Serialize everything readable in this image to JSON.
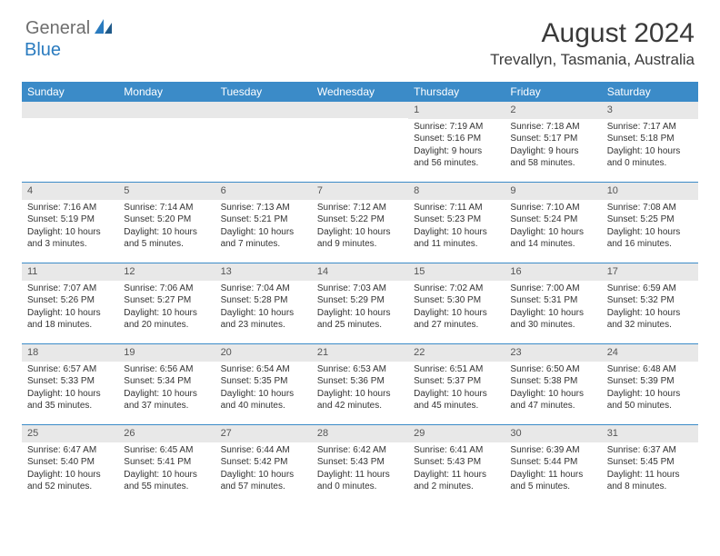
{
  "logo": {
    "part1": "General",
    "part2": "Blue"
  },
  "title": "August 2024",
  "location": "Trevallyn, Tasmania, Australia",
  "colors": {
    "header_bg": "#3b8bc8",
    "header_text": "#ffffff",
    "daynum_bg": "#e8e8e8",
    "border": "#3b8bc8",
    "logo_gray": "#6e6e6e",
    "logo_blue": "#2a7bbf",
    "text": "#333333"
  },
  "day_names": [
    "Sunday",
    "Monday",
    "Tuesday",
    "Wednesday",
    "Thursday",
    "Friday",
    "Saturday"
  ],
  "weeks": [
    [
      {
        "n": "",
        "sr": "",
        "ss": "",
        "dl": ""
      },
      {
        "n": "",
        "sr": "",
        "ss": "",
        "dl": ""
      },
      {
        "n": "",
        "sr": "",
        "ss": "",
        "dl": ""
      },
      {
        "n": "",
        "sr": "",
        "ss": "",
        "dl": ""
      },
      {
        "n": "1",
        "sr": "Sunrise: 7:19 AM",
        "ss": "Sunset: 5:16 PM",
        "dl": "Daylight: 9 hours and 56 minutes."
      },
      {
        "n": "2",
        "sr": "Sunrise: 7:18 AM",
        "ss": "Sunset: 5:17 PM",
        "dl": "Daylight: 9 hours and 58 minutes."
      },
      {
        "n": "3",
        "sr": "Sunrise: 7:17 AM",
        "ss": "Sunset: 5:18 PM",
        "dl": "Daylight: 10 hours and 0 minutes."
      }
    ],
    [
      {
        "n": "4",
        "sr": "Sunrise: 7:16 AM",
        "ss": "Sunset: 5:19 PM",
        "dl": "Daylight: 10 hours and 3 minutes."
      },
      {
        "n": "5",
        "sr": "Sunrise: 7:14 AM",
        "ss": "Sunset: 5:20 PM",
        "dl": "Daylight: 10 hours and 5 minutes."
      },
      {
        "n": "6",
        "sr": "Sunrise: 7:13 AM",
        "ss": "Sunset: 5:21 PM",
        "dl": "Daylight: 10 hours and 7 minutes."
      },
      {
        "n": "7",
        "sr": "Sunrise: 7:12 AM",
        "ss": "Sunset: 5:22 PM",
        "dl": "Daylight: 10 hours and 9 minutes."
      },
      {
        "n": "8",
        "sr": "Sunrise: 7:11 AM",
        "ss": "Sunset: 5:23 PM",
        "dl": "Daylight: 10 hours and 11 minutes."
      },
      {
        "n": "9",
        "sr": "Sunrise: 7:10 AM",
        "ss": "Sunset: 5:24 PM",
        "dl": "Daylight: 10 hours and 14 minutes."
      },
      {
        "n": "10",
        "sr": "Sunrise: 7:08 AM",
        "ss": "Sunset: 5:25 PM",
        "dl": "Daylight: 10 hours and 16 minutes."
      }
    ],
    [
      {
        "n": "11",
        "sr": "Sunrise: 7:07 AM",
        "ss": "Sunset: 5:26 PM",
        "dl": "Daylight: 10 hours and 18 minutes."
      },
      {
        "n": "12",
        "sr": "Sunrise: 7:06 AM",
        "ss": "Sunset: 5:27 PM",
        "dl": "Daylight: 10 hours and 20 minutes."
      },
      {
        "n": "13",
        "sr": "Sunrise: 7:04 AM",
        "ss": "Sunset: 5:28 PM",
        "dl": "Daylight: 10 hours and 23 minutes."
      },
      {
        "n": "14",
        "sr": "Sunrise: 7:03 AM",
        "ss": "Sunset: 5:29 PM",
        "dl": "Daylight: 10 hours and 25 minutes."
      },
      {
        "n": "15",
        "sr": "Sunrise: 7:02 AM",
        "ss": "Sunset: 5:30 PM",
        "dl": "Daylight: 10 hours and 27 minutes."
      },
      {
        "n": "16",
        "sr": "Sunrise: 7:00 AM",
        "ss": "Sunset: 5:31 PM",
        "dl": "Daylight: 10 hours and 30 minutes."
      },
      {
        "n": "17",
        "sr": "Sunrise: 6:59 AM",
        "ss": "Sunset: 5:32 PM",
        "dl": "Daylight: 10 hours and 32 minutes."
      }
    ],
    [
      {
        "n": "18",
        "sr": "Sunrise: 6:57 AM",
        "ss": "Sunset: 5:33 PM",
        "dl": "Daylight: 10 hours and 35 minutes."
      },
      {
        "n": "19",
        "sr": "Sunrise: 6:56 AM",
        "ss": "Sunset: 5:34 PM",
        "dl": "Daylight: 10 hours and 37 minutes."
      },
      {
        "n": "20",
        "sr": "Sunrise: 6:54 AM",
        "ss": "Sunset: 5:35 PM",
        "dl": "Daylight: 10 hours and 40 minutes."
      },
      {
        "n": "21",
        "sr": "Sunrise: 6:53 AM",
        "ss": "Sunset: 5:36 PM",
        "dl": "Daylight: 10 hours and 42 minutes."
      },
      {
        "n": "22",
        "sr": "Sunrise: 6:51 AM",
        "ss": "Sunset: 5:37 PM",
        "dl": "Daylight: 10 hours and 45 minutes."
      },
      {
        "n": "23",
        "sr": "Sunrise: 6:50 AM",
        "ss": "Sunset: 5:38 PM",
        "dl": "Daylight: 10 hours and 47 minutes."
      },
      {
        "n": "24",
        "sr": "Sunrise: 6:48 AM",
        "ss": "Sunset: 5:39 PM",
        "dl": "Daylight: 10 hours and 50 minutes."
      }
    ],
    [
      {
        "n": "25",
        "sr": "Sunrise: 6:47 AM",
        "ss": "Sunset: 5:40 PM",
        "dl": "Daylight: 10 hours and 52 minutes."
      },
      {
        "n": "26",
        "sr": "Sunrise: 6:45 AM",
        "ss": "Sunset: 5:41 PM",
        "dl": "Daylight: 10 hours and 55 minutes."
      },
      {
        "n": "27",
        "sr": "Sunrise: 6:44 AM",
        "ss": "Sunset: 5:42 PM",
        "dl": "Daylight: 10 hours and 57 minutes."
      },
      {
        "n": "28",
        "sr": "Sunrise: 6:42 AM",
        "ss": "Sunset: 5:43 PM",
        "dl": "Daylight: 11 hours and 0 minutes."
      },
      {
        "n": "29",
        "sr": "Sunrise: 6:41 AM",
        "ss": "Sunset: 5:43 PM",
        "dl": "Daylight: 11 hours and 2 minutes."
      },
      {
        "n": "30",
        "sr": "Sunrise: 6:39 AM",
        "ss": "Sunset: 5:44 PM",
        "dl": "Daylight: 11 hours and 5 minutes."
      },
      {
        "n": "31",
        "sr": "Sunrise: 6:37 AM",
        "ss": "Sunset: 5:45 PM",
        "dl": "Daylight: 11 hours and 8 minutes."
      }
    ]
  ]
}
